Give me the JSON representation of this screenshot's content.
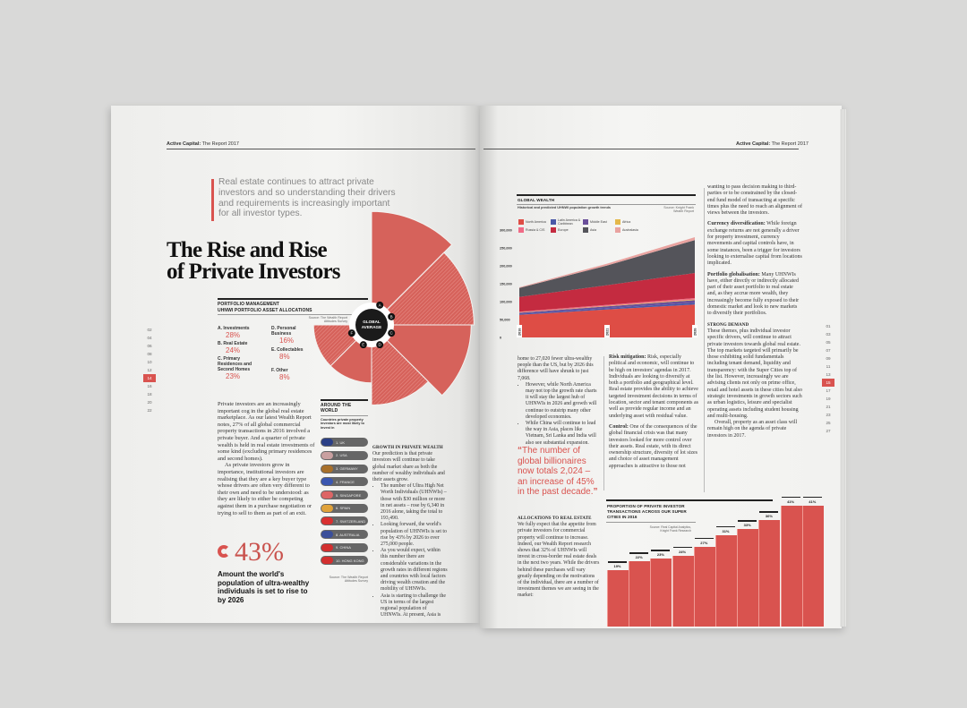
{
  "colors": {
    "accent": "#d9534f",
    "dark": "#222222",
    "page": "#f3f3f1"
  },
  "left": {
    "running_head_bold": "Active Capital:",
    "running_head": "The Report 2017",
    "intro": "Real estate continues to attract private investors and so understanding their drivers and requirements is increasingly important for all investor types.",
    "title_line1": "The Rise and Rise",
    "title_line2": "of Private Investors",
    "portfolio": {
      "kicker": "PORTFOLIO MANAGEMENT",
      "title": "UHNWI PORTFOLIO ASSET ALLOCATIONS",
      "source": "Source: The Wealth Report Attitudes Survey",
      "center_label": "GLOBAL AVERAGE",
      "items": [
        {
          "letter": "A",
          "label": "A. Investments",
          "value": 28,
          "pct": "28%"
        },
        {
          "letter": "B",
          "label": "B. Real Estate",
          "value": 24,
          "pct": "24%"
        },
        {
          "letter": "C",
          "label": "C. Primary Residences and Second Homes",
          "value": 23,
          "pct": "23%"
        },
        {
          "letter": "D",
          "label": "D. Personal Business",
          "value": 16,
          "pct": "16%"
        },
        {
          "letter": "E",
          "label": "E. Collectables",
          "value": 8,
          "pct": "8%"
        },
        {
          "letter": "F",
          "label": "F. Other",
          "value": 8,
          "pct": "8%"
        }
      ]
    },
    "body_p1": "Private investors are an increasingly important cog in the global real estate marketplace. As our latest Wealth Report notes, 27% of all global commercial property transactions in 2016 involved a private buyer. And a quarter of private wealth is held in real estate investments of some kind (excluding primary residences and second homes).",
    "body_p2": "As private investors grow in importance, institutional investors are realising that they are a key buyer type whose drivers are often very different to their own and need to be understood: as they are likely to either be competing against them in a purchase negotiation or trying to sell to them as part of an exit.",
    "stat_value": "43%",
    "stat_caption": "Amount the world's population of ultra-wealthy individuals is set to rise to by 2026",
    "around": {
      "title": "AROUND THE WORLD",
      "subtitle": "Countries private property investors are most likely to invest in",
      "countries": [
        {
          "label": "1. UK",
          "flag": "#2b3f86"
        },
        {
          "label": "2. USA",
          "flag": "#c9a0a0"
        },
        {
          "label": "3. GERMANY",
          "flag": "#a8702a"
        },
        {
          "label": "4. FRANCE",
          "flag": "#3a56b0"
        },
        {
          "label": "5. SINGAPORE",
          "flag": "#d66"
        },
        {
          "label": "6. SPAIN",
          "flag": "#e0a23a"
        },
        {
          "label": "7. SWITZERLAND",
          "flag": "#d93030"
        },
        {
          "label": "8. AUSTRALIA",
          "flag": "#3b4f9a"
        },
        {
          "label": "9. CHINA",
          "flag": "#d32f2f"
        },
        {
          "label": "10. HONG KONG",
          "flag": "#d32f2f"
        }
      ],
      "source": "Source: The Wealth Report Attitudes Survey"
    },
    "growth": {
      "title": "GROWTH IN PRIVATE WEALTH",
      "intro": "Our prediction is that private investors will continue to take global market share as both the number of wealthy individuals and their assets grow.",
      "bullets": [
        "The number of Ultra High Net Worth Individuals (UHNWIs) – those with $30 million or more in net assets – rose by 6,340 in 2016 alone, taking the total to 193,490.",
        "Looking forward, the world's population of UHNWIs is set to rise by 43% by 2026 to over 275,000 people.",
        "As you would expect, within this number there are considerable variations in the growth rates in different regions and countries with local factors driving wealth creation and the mobility of UHNWIs.",
        "Asia is starting to challenge the US in terms of the largest regional population of UHNWIs. At present, Asia is"
      ]
    },
    "page_numbers": [
      "02",
      "04",
      "06",
      "08",
      "10",
      "12",
      "14",
      "16",
      "18",
      "20",
      "22"
    ],
    "current_page": "14"
  },
  "right": {
    "running_head_bold": "Active Capital:",
    "running_head": "The Report 2017",
    "global_wealth": {
      "title": "GLOBAL WEALTH",
      "subtitle": "Historical and predicted UHNWI population growth trends",
      "source": "Source: Knight Frank Wealth Report"
    },
    "col1_p1": "home to 27,020 fewer ultra-wealthy people than the US, but by 2026 this difference will have shrunk to just 7,068.",
    "col1_bullets": [
      "However, while North America may not top the growth rate charts it will stay the largest hub of UHNWIs in 2026 and growth will continue to outstrip many other developed economies.",
      "While China will continue to lead the way in Asia, places like Vietnam, Sri Lanka and India will also see substantial expansion."
    ],
    "quote": "The number of global billionaires now totals 2,024 – an increase of 45% in the past decade.",
    "quote_open": "“",
    "quote_close": "”",
    "alloc_title": "ALLOCATIONS TO REAL ESTATE",
    "alloc_body": "We fully expect that the appetite from private investors for commercial property will continue to increase. Indeed, our Wealth Report research shows that 32% of UHNWIs will invest in cross-border real estate deals in the next two years. While the drivers behind these purchases will vary greatly depending on the motivations of the individual, there are a number of investment themes we are seeing in the market:",
    "risk_label": "Risk mitigation:",
    "risk_body": "Risk, especially political and economic, will continue to be high on investors' agendas in 2017. Individuals are looking to diversify at both a portfolio and geographical level. Real estate provides the ability to achieve targeted investment decisions in terms of location, sector and tenant components as well as provide regular income and an underlying asset with residual value.",
    "control_label": "Control:",
    "control_body": "One of the consequences of the global financial crisis was that many investors looked for more control over their assets. Real estate, with its direct ownership structure, diversity of lot sizes and choice of asset management approaches is attractive to those not",
    "col3_p1": "wanting to pass decision making to third-parties or to be constrained by the closed-end fund model of transacting at specific times plus the need to reach an alignment of views between the investors.",
    "currency_label": "Currency diversification:",
    "currency_body": "While foreign exchange returns are not generally a driver for property investment, currency movements and capital controls have, in some instances, been a trigger for investors looking to externalise capital from locations implicated.",
    "portfolio_label": "Portfolio globalisation:",
    "portfolio_body": "Many UHNWIs have, either directly or indirectly allocated part of their asset portfolio to real estate and, as they accrue more wealth, they increasingly become fully exposed to their domestic market and look to new markets to diversify their portfolios.",
    "strong_title": "STRONG DEMAND",
    "strong_body": "These themes, plus individual investor specific drivers, will continue to attract private investors towards global real estate. The top markets targeted will primarily be those exhibiting solid fundamentals including tenant demand, liquidity and transparency: with the Super Cities top of the list. However, increasingly we are advising clients not only on prime office, retail and hotel assets in these cities but also strategic investments in growth sectors such as urban logistics, leisure and specialist operating assets including student housing and multi-housing.",
    "strong_body2": "Overall, property as an asset class will remain high on the agenda of private investors in 2017.",
    "bar_title": "PROPORTION OF PRIVATE INVESTOR TRANSACTIONS ACROSS OUR SUPER CITIES IN 2016",
    "bar_source": "Source: Real Capital Analytics, Knight Frank Research",
    "page_numbers": [
      "01",
      "03",
      "05",
      "07",
      "09",
      "11",
      "13",
      "15",
      "17",
      "19",
      "21",
      "23",
      "25",
      "27"
    ],
    "current_page": "15"
  },
  "chart_data": [
    {
      "type": "area",
      "title": "GLOBAL WEALTH",
      "subtitle": "Historical and predicted UHNWI population growth trends",
      "x": [
        "2016",
        "2021",
        "2026"
      ],
      "ylim": [
        0,
        300000
      ],
      "yticks": [
        "0",
        "50,000",
        "100,000",
        "150,000",
        "200,000",
        "250,000",
        "300,000"
      ],
      "stacked": true,
      "legend_position": "top-left",
      "series": [
        {
          "name": "North America",
          "color": "#de4d45",
          "values": [
            63000,
            78000,
            92000
          ]
        },
        {
          "name": "Latin America & Caribbean",
          "color": "#4a58a8",
          "values": [
            3000,
            4000,
            5000
          ]
        },
        {
          "name": "Middle East",
          "color": "#6a4f9a",
          "values": [
            3000,
            5000,
            7000
          ]
        },
        {
          "name": "Africa",
          "color": "#e4b84a",
          "values": [
            1000,
            1000,
            2000
          ]
        },
        {
          "name": "Russia & CIS",
          "color": "#f06b86",
          "values": [
            2000,
            3000,
            4000
          ]
        },
        {
          "name": "Europe",
          "color": "#c42b40",
          "values": [
            41000,
            55000,
            70000
          ]
        },
        {
          "name": "Asia",
          "color": "#54545a",
          "values": [
            25000,
            55000,
            92000
          ]
        },
        {
          "name": "Australasia",
          "color": "#e9a3a0",
          "values": [
            2000,
            5000,
            8000
          ]
        }
      ]
    },
    {
      "type": "bar",
      "title": "PROPORTION OF PRIVATE INVESTOR TRANSACTIONS ACROSS OUR SUPER CITIES IN 2016",
      "values": [
        19,
        22,
        23,
        24,
        27,
        31,
        33,
        36,
        41,
        41
      ],
      "labels": [
        "19%",
        "22%",
        "23%",
        "24%",
        "27%",
        "31%",
        "33%",
        "36%",
        "41%",
        "41%"
      ],
      "unit": "%",
      "color": "#d9534f"
    }
  ]
}
